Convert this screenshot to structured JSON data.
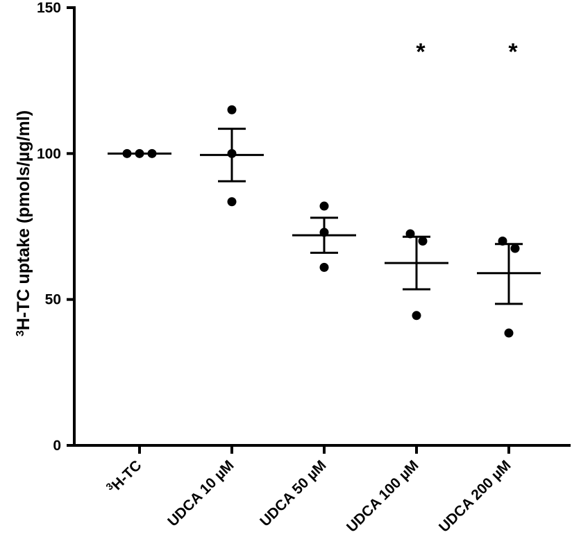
{
  "chart_data": {
    "type": "scatter",
    "title": "",
    "ylabel_sup": "3",
    "ylabel": "H-TC uptake (pmols/µg/ml)",
    "ylim": [
      0,
      150
    ],
    "yticks": [
      0,
      50,
      100,
      150
    ],
    "grid": false,
    "categories": [
      {
        "sup": "3",
        "label": "H-TC"
      },
      {
        "sup": "",
        "label": "UDCA 10 µM"
      },
      {
        "sup": "",
        "label": "UDCA 50 µM"
      },
      {
        "sup": "",
        "label": "UDCA 100 µM"
      },
      {
        "sup": "",
        "label": "UDCA 200 µM"
      }
    ],
    "points": [
      [
        100,
        100,
        100
      ],
      [
        115,
        100,
        83.5
      ],
      [
        82,
        73,
        61
      ],
      [
        72.5,
        70,
        44.5
      ],
      [
        70,
        67.5,
        38.5
      ]
    ],
    "means": [
      100,
      99.5,
      72,
      62.5,
      59
    ],
    "error": [
      [
        100,
        100
      ],
      [
        90.5,
        108.5
      ],
      [
        66,
        78
      ],
      [
        53.5,
        71.5
      ],
      [
        48.5,
        69
      ]
    ],
    "significance": [
      "",
      "",
      "",
      "*",
      "*"
    ]
  }
}
